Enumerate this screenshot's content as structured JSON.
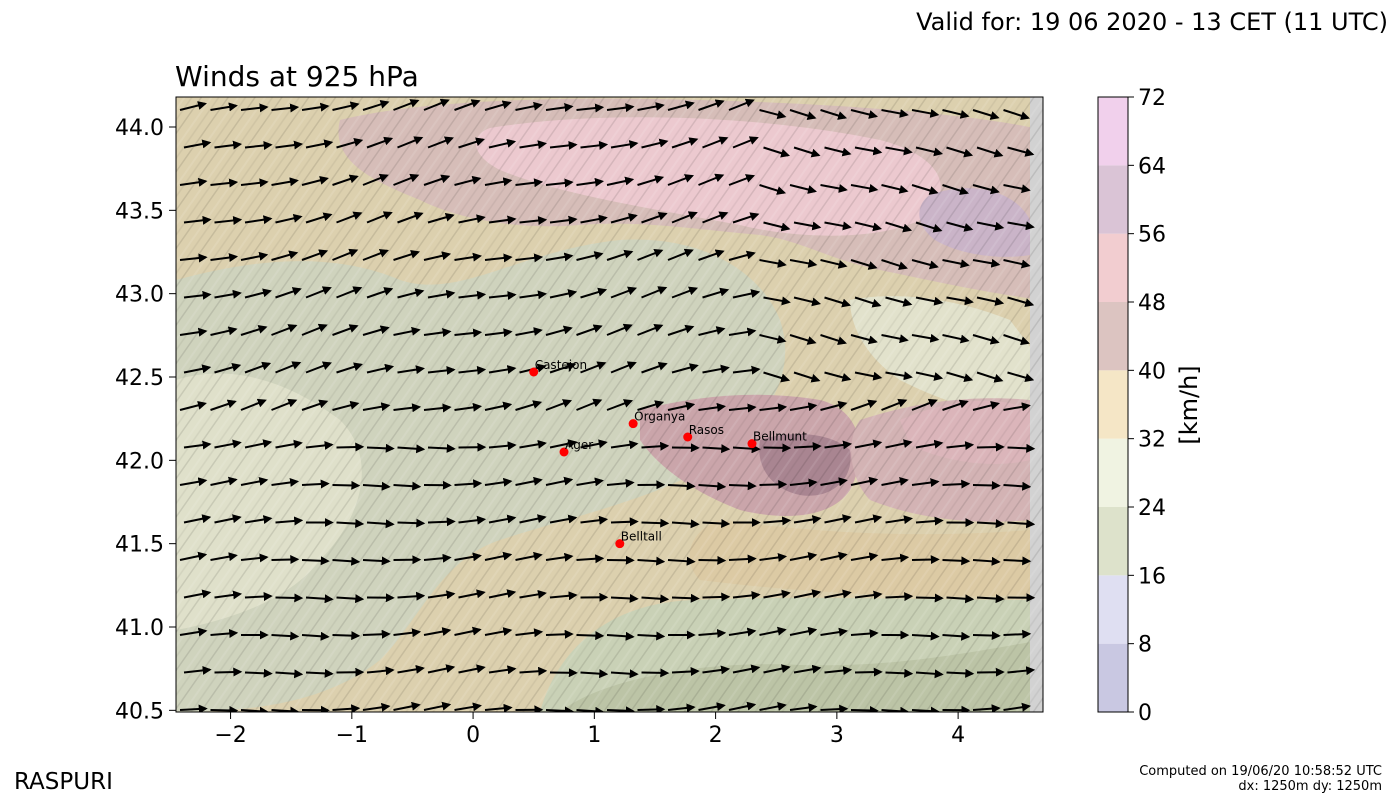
{
  "header": {
    "valid_for": "Valid for: 19 06 2020 - 13 CET (11 UTC)",
    "title": "Winds at 925 hPa"
  },
  "footer": {
    "brand": "RASPURI",
    "computed_line1": "Computed on 19/06/20 10:58:52 UTC",
    "computed_line2": "dx: 1250m dy: 1250m"
  },
  "map": {
    "lon_range": [
      -2.45,
      4.7
    ],
    "lat_range": [
      40.49,
      44.18
    ],
    "x_ticks": [
      -2,
      -1,
      0,
      1,
      2,
      3,
      4
    ],
    "x_tick_labels": [
      "−2",
      "−1",
      "0",
      "1",
      "2",
      "3",
      "4"
    ],
    "y_ticks": [
      40.5,
      41.0,
      41.5,
      42.0,
      42.5,
      43.0,
      43.5,
      44.0
    ],
    "y_tick_labels": [
      "40.5",
      "41.0",
      "41.5",
      "42.0",
      "42.5",
      "43.0",
      "43.5",
      "44.0"
    ],
    "cities": [
      {
        "name": "Castejon",
        "lon": 0.5,
        "lat": 42.53
      },
      {
        "name": "Organya",
        "lon": 1.32,
        "lat": 42.22
      },
      {
        "name": "Rasos",
        "lon": 1.77,
        "lat": 42.14
      },
      {
        "name": "Bellmunt",
        "lon": 2.3,
        "lat": 42.1
      },
      {
        "name": "Ager",
        "lon": 0.75,
        "lat": 42.05
      },
      {
        "name": "Belltall",
        "lon": 1.21,
        "lat": 41.5
      }
    ],
    "colors": {
      "city_marker": "#ff0000",
      "arrow": "#000000"
    }
  },
  "colorbar": {
    "unit": "[km/h]",
    "levels": [
      0,
      8,
      16,
      24,
      32,
      40,
      48,
      56,
      64,
      72
    ],
    "level_labels": [
      "0",
      "8",
      "16",
      "24",
      "32",
      "40",
      "48",
      "56",
      "64",
      "72"
    ],
    "colors": [
      "#c9c8e2",
      "#dfdff2",
      "#dde2cb",
      "#f0f3e2",
      "#f5e6c6",
      "#dcc4c1",
      "#f2cdd0",
      "#dac4d6",
      "#f1d0ec"
    ]
  }
}
